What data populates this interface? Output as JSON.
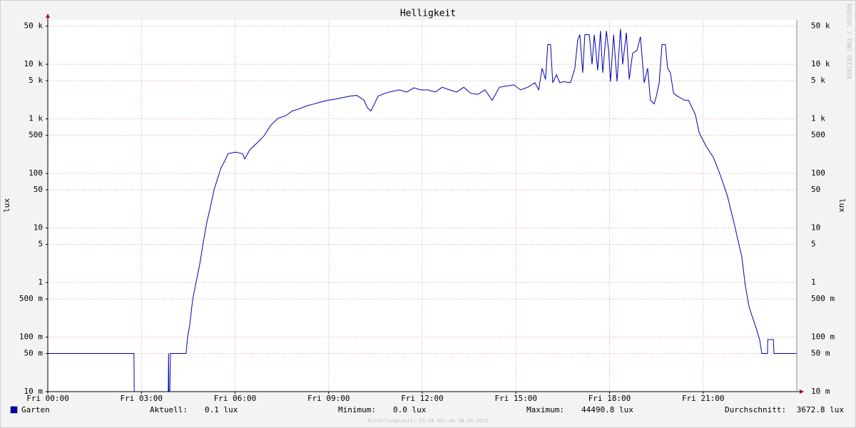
{
  "chart_data": {
    "type": "line",
    "title": "Helligkeit",
    "ylabel": "lux",
    "side_text": "RRDTOOL / TOBI OETIKER",
    "footer": "Erstellungszeit: 23:58 Uhr am 30.05.2025",
    "log_y": true,
    "grid": true,
    "xlim": [
      0,
      24
    ],
    "xticks": [
      {
        "value": 0,
        "label": "Fri 00:00"
      },
      {
        "value": 3,
        "label": "Fri 03:00"
      },
      {
        "value": 6,
        "label": "Fri 06:00"
      },
      {
        "value": 9,
        "label": "Fri 09:00"
      },
      {
        "value": 12,
        "label": "Fri 12:00"
      },
      {
        "value": 15,
        "label": "Fri 15:00"
      },
      {
        "value": 18,
        "label": "Fri 18:00"
      },
      {
        "value": 21,
        "label": "Fri 21:00"
      }
    ],
    "ylim": [
      0.01,
      65000
    ],
    "yticks": [
      {
        "value": 0.01,
        "label": "10 m"
      },
      {
        "value": 0.05,
        "label": "50 m"
      },
      {
        "value": 0.1,
        "label": "100 m"
      },
      {
        "value": 0.5,
        "label": "500 m"
      },
      1,
      5,
      10,
      50,
      100,
      500,
      {
        "value": 1000,
        "label": "1 k"
      },
      {
        "value": 5000,
        "label": "5 k"
      },
      {
        "value": 10000,
        "label": "10 k"
      },
      {
        "value": 50000,
        "label": "50 k"
      }
    ],
    "x": [
      0,
      2.76,
      2.77,
      3.86,
      3.87,
      3.88,
      3.91,
      3.93,
      4.43,
      4.48,
      4.55,
      4.64,
      4.75,
      4.87,
      4.98,
      5.1,
      5.21,
      5.33,
      5.44,
      5.55,
      5.67,
      5.78,
      6.01,
      6.24,
      6.31,
      6.47,
      6.7,
      6.93,
      7.15,
      7.38,
      7.61,
      7.84,
      8.07,
      8.3,
      8.53,
      8.75,
      8.98,
      9.21,
      9.44,
      9.67,
      9.9,
      10.13,
      10.24,
      10.35,
      10.47,
      10.58,
      10.81,
      11.04,
      11.27,
      11.5,
      11.73,
      11.95,
      12.18,
      12.41,
      12.64,
      12.87,
      13.1,
      13.33,
      13.55,
      13.78,
      14.01,
      14.24,
      14.47,
      14.7,
      14.93,
      15.15,
      15.38,
      15.61,
      15.73,
      15.84,
      15.95,
      16.02,
      16.11,
      16.18,
      16.3,
      16.41,
      16.53,
      16.75,
      16.89,
      16.98,
      17.05,
      17.14,
      17.21,
      17.35,
      17.44,
      17.51,
      17.62,
      17.71,
      17.78,
      17.9,
      17.97,
      18.03,
      18.13,
      18.24,
      18.35,
      18.42,
      18.54,
      18.63,
      18.74,
      18.88,
      18.99,
      19.11,
      19.22,
      19.31,
      19.43,
      19.5,
      19.59,
      19.68,
      19.79,
      19.86,
      19.95,
      20.05,
      20.18,
      20.41,
      20.53,
      20.75,
      20.87,
      21.1,
      21.33,
      21.55,
      21.78,
      22.01,
      22.24,
      22.35,
      22.47,
      22.58,
      22.7,
      22.81,
      22.88,
      23.06,
      23.07,
      23.25,
      23.27,
      24
    ],
    "series": [
      {
        "name": "Garten",
        "color": "#0000b4",
        "values": [
          0.05,
          0.05,
          0.01,
          0.01,
          0.05,
          0.01,
          0.01,
          0.05,
          0.05,
          0.1,
          0.17,
          0.48,
          1.0,
          2.2,
          5.4,
          13,
          24,
          51,
          80,
          126,
          170,
          230,
          245,
          230,
          185,
          270,
          360,
          490,
          770,
          1030,
          1130,
          1400,
          1540,
          1730,
          1880,
          2040,
          2200,
          2300,
          2450,
          2600,
          2700,
          2200,
          1600,
          1400,
          1900,
          2600,
          2950,
          3200,
          3400,
          3100,
          3700,
          3400,
          3400,
          3100,
          3800,
          3400,
          3100,
          3800,
          2950,
          2800,
          3400,
          2200,
          3800,
          4000,
          4200,
          3400,
          3800,
          4600,
          3400,
          8500,
          5300,
          23000,
          23000,
          4600,
          6400,
          4600,
          4800,
          4600,
          8500,
          28000,
          35000,
          7000,
          35000,
          35000,
          10000,
          35000,
          7800,
          41000,
          7000,
          41000,
          18000,
          4800,
          35000,
          4800,
          44490,
          10000,
          38000,
          5300,
          16000,
          18000,
          32000,
          4600,
          8500,
          2200,
          1880,
          2600,
          4600,
          23000,
          23000,
          8500,
          7000,
          2950,
          2600,
          2200,
          2200,
          1200,
          560,
          310,
          195,
          93,
          38,
          11,
          2.9,
          0.88,
          0.36,
          0.23,
          0.145,
          0.09,
          0.05,
          0.05,
          0.09,
          0.09,
          0.05,
          0.05
        ]
      }
    ],
    "legend_stats": [
      {
        "label": "Aktuell:",
        "value": "0.1 lux"
      },
      {
        "label": "Minimum:",
        "value": "0.0 lux"
      },
      {
        "label": "Maximum:",
        "value": "44490.8 lux"
      },
      {
        "label": "Durchschnitt:",
        "value": "3672.8 lux"
      }
    ]
  }
}
